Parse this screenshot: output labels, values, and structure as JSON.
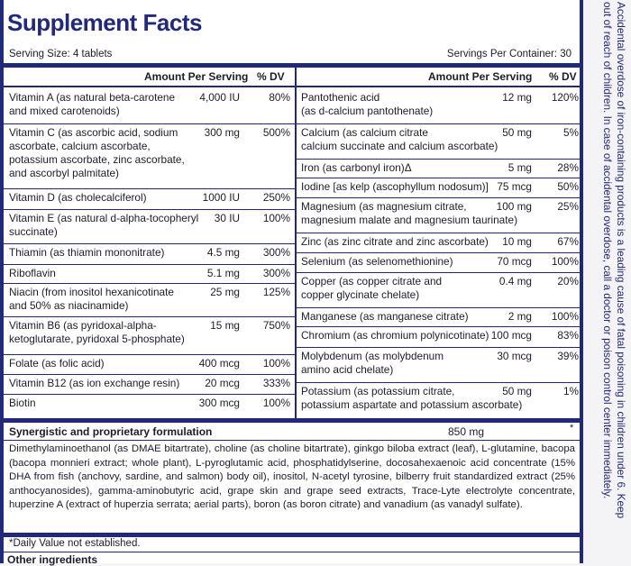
{
  "title": "Supplement Facts",
  "serving_size": "Serving Size: 4 tablets",
  "servings_per_container": "Servings Per Container: 30",
  "headers": {
    "amount_per_serving": "Amount Per Serving",
    "percent_dv": "% DV"
  },
  "left_rows": [
    {
      "name": "Vitamin A (as natural beta-carotene\nand mixed carotenoids)",
      "amount": "4,000 IU",
      "dv": "80%"
    },
    {
      "name": "Vitamin C (as ascorbic acid, sodium\nascorbate, calcium ascorbate,\npotassium ascorbate, zinc ascorbate,\nand ascorbyl palmitate)",
      "amount": "300 mg",
      "dv": "500%"
    },
    {
      "name": "Vitamin D (as cholecalciferol)",
      "amount": "1000 IU",
      "dv": "250%"
    },
    {
      "name": "Vitamin E (as natural d-alpha-tocopheryl\nsuccinate)",
      "amount": "30 IU",
      "dv": "100%"
    },
    {
      "name": "Thiamin (as thiamin mononitrate)",
      "amount": "4.5 mg",
      "dv": "300%"
    },
    {
      "name": "Riboflavin",
      "amount": "5.1 mg",
      "dv": "300%"
    },
    {
      "name": "Niacin (from inositol hexanicotinate\nand 50% as niacinamide)",
      "amount": "25 mg",
      "dv": "125%"
    },
    {
      "name": "Vitamin B6 (as pyridoxal-alpha-\nketoglutarate, pyridoxal 5-phosphate)",
      "amount": "15 mg",
      "dv": "750%"
    },
    {
      "name": "Folate (as folic acid)",
      "amount": "400 mcg",
      "dv": "100%"
    },
    {
      "name": "Vitamin B12 (as ion exchange resin)",
      "amount": "20 mcg",
      "dv": "333%"
    },
    {
      "name": "Biotin",
      "amount": "300 mcg",
      "dv": "100%"
    }
  ],
  "right_rows": [
    {
      "name": "Pantothenic acid\n(as d-calcium pantothenate)",
      "amount": "12 mg",
      "dv": "120%"
    },
    {
      "name": "Calcium (as calcium citrate\ncalcium succinate and calcium ascorbate)",
      "amount": "50 mg",
      "dv": "5%"
    },
    {
      "name": "Iron (as carbonyl iron)Δ",
      "amount": "5 mg",
      "dv": "28%"
    },
    {
      "name": "Iodine [as kelp (ascophyllum nodosum)]",
      "amount": "75 mcg",
      "dv": "50%"
    },
    {
      "name": "Magnesium (as magnesium citrate,\nmagnesium malate and magnesium taurinate)",
      "amount": "100 mg",
      "dv": "25%"
    },
    {
      "name": "Zinc (as zinc citrate and zinc ascorbate)",
      "amount": "10 mg",
      "dv": "67%"
    },
    {
      "name": "Selenium (as selenomethionine)",
      "amount": "70 mcg",
      "dv": "100%"
    },
    {
      "name": "Copper (as copper citrate and\ncopper glycinate chelate)",
      "amount": "0.4 mg",
      "dv": "20%"
    },
    {
      "name": "Manganese (as manganese citrate)",
      "amount": "2 mg",
      "dv": "100%"
    },
    {
      "name": "Chromium (as chromium polynicotinate)",
      "amount": "100 mcg",
      "dv": "83%"
    },
    {
      "name": "Molybdenum (as molybdenum\namino acid chelate)",
      "amount": "30 mcg",
      "dv": "39%"
    },
    {
      "name": "Potassium (as potassium citrate,\npotassium aspartate and potassium ascorbate)",
      "amount": "50 mg",
      "dv": "1%"
    }
  ],
  "synergistic": {
    "title": "Synergistic and proprietary formulation",
    "amount": "850 mg",
    "star": "*",
    "ingredients": "Dimethylaminoethanol (as DMAE bitartrate), choline (as choline bitartrate), ginkgo biloba extract (leaf), L-glutamine, bacopa (bacopa monnieri extract; whole plant), L-pyroglutamic acid, phosphatidylserine, docosahexaenoic acid concentrate (15% DHA from fish (anchovy, sardine, and salmon) body oil), inositol, N-acetyl tyrosine, bilberry fruit standardized extract (25% anthocyanosides), gamma-aminobutyric acid, grape skin and grape seed extracts, Trace-Lyte electrolyte concentrate, huperzine A (extract of huperzia serrata; aerial parts), boron (as boron citrate) and vanadium (as vanadyl sulfate)."
  },
  "footnote": "*Daily Value not established.",
  "other_ingredients": "Other ingredients",
  "side_warning": "Accidental overdose of iron-containing products is a leading cause of fatal poisoning in children under 6. Keep\nout of reach of children. In case of accidental overdose, call a doctor or poison control center immediately.",
  "colors": {
    "border": "#23297a",
    "text": "#1c1d2a"
  }
}
